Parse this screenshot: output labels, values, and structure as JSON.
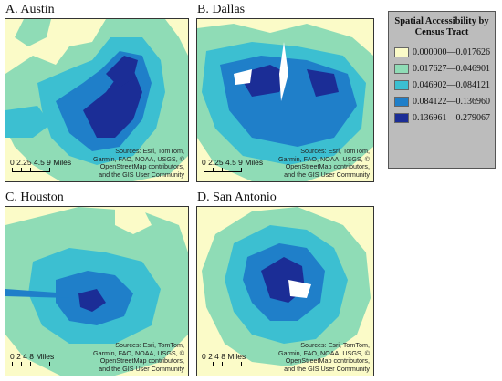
{
  "panels": [
    {
      "title": "A. Austin",
      "scale": "0 2.25 4.5    9 Miles",
      "attribution": [
        "Sources: Esri, TomTom,",
        "Garmin, FAO, NOAA, USGS, ©",
        "OpenStreetMap contributors,",
        "and the GIS User Community"
      ]
    },
    {
      "title": "B. Dallas",
      "scale": "0 2.25 4.5    9 Miles",
      "attribution": [
        "Sources: Esri, TomTom,",
        "Garmin, FAO, NOAA, USGS, ©",
        "OpenStreetMap contributors,",
        "and the GIS User Community"
      ]
    },
    {
      "title": "C. Houston",
      "scale": "0 2 4    8 Miles",
      "attribution": [
        "Sources: Esri, TomTom,",
        "Garmin, FAO, NOAA, USGS, ©",
        "OpenStreetMap contributors,",
        "and the GIS User Community"
      ]
    },
    {
      "title": "D. San Antonio",
      "scale": "0 2 4    8 Miles",
      "attribution": [
        "Sources: Esri, TomTom,",
        "Garmin, FAO, NOAA, USGS, ©",
        "OpenStreetMap contributors,",
        "and the GIS User Community"
      ]
    }
  ],
  "legend": {
    "title": "Spatial Accessibility by Census Tract",
    "classes": [
      {
        "label": "0.000000—0.017626",
        "color": "#fbfbc8"
      },
      {
        "label": "0.017627—0.046901",
        "color": "#8fdcb6"
      },
      {
        "label": "0.046902—0.084121",
        "color": "#3cbfd1"
      },
      {
        "label": "0.084122—0.136960",
        "color": "#1f7fc9"
      },
      {
        "label": "0.136961—0.279067",
        "color": "#1b2d96"
      }
    ]
  }
}
